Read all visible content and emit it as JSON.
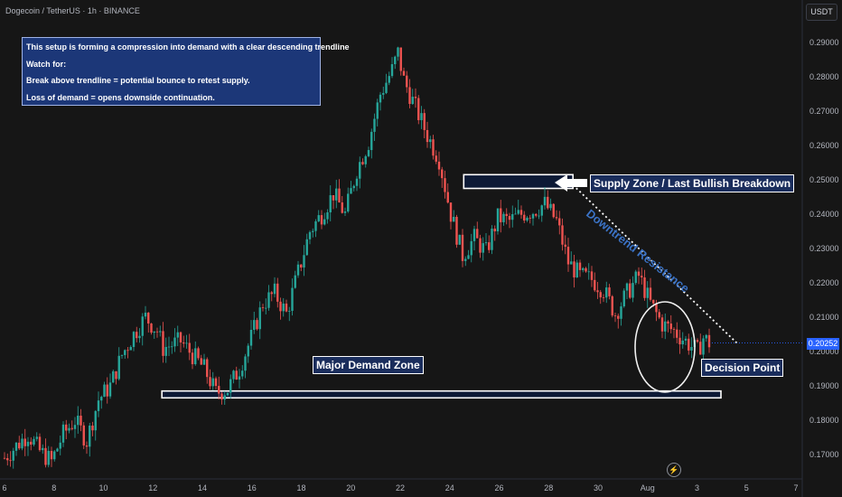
{
  "header": {
    "symbol_title": "Dogecoin / TetherUS · 1h · BINANCE",
    "currency_button": "USDT"
  },
  "note": {
    "lines": [
      "This setup is forming a compression into demand with a clear descending trendline",
      "Watch for:",
      "Break above trendline = potential bounce to retest supply.",
      "Loss of demand = opens downside continuation."
    ]
  },
  "annotations": {
    "supply": "Supply Zone / Last Bullish Breakdown",
    "demand": "Major Demand Zone",
    "trend": "Downtrend Resistance",
    "decision": "Decision Point"
  },
  "last_price": "0.20252",
  "colors": {
    "up": "#26a69a",
    "down": "#ef5350",
    "background": "#161616",
    "zone_fill": "#0d1a36",
    "accent": "#2962ff",
    "trend_text": "#3b73c6"
  },
  "icons": {
    "flash": "lightning-bolt-icon",
    "arrow": "left-arrow-icon"
  },
  "chart_data": {
    "type": "candlestick",
    "title": "",
    "xlabel": "",
    "ylabel": "",
    "ylim": [
      0.165,
      0.295
    ],
    "y_ticks": [
      "0.29000",
      "0.28000",
      "0.27000",
      "0.26000",
      "0.25000",
      "0.24000",
      "0.23000",
      "0.22000",
      "0.21000",
      "0.20000",
      "0.19000",
      "0.18000",
      "0.17000"
    ],
    "x_ticks": [
      "6",
      "8",
      "10",
      "12",
      "14",
      "16",
      "18",
      "20",
      "22",
      "24",
      "26",
      "28",
      "30",
      "Aug",
      "3",
      "5",
      "7"
    ],
    "grid": false,
    "price_path": [
      [
        0,
        0.169
      ],
      [
        4,
        0.176
      ],
      [
        6,
        0.171
      ],
      [
        8,
        0.168
      ],
      [
        10,
        0.176
      ],
      [
        12,
        0.18
      ],
      [
        14,
        0.174
      ],
      [
        16,
        0.186
      ],
      [
        18,
        0.19
      ],
      [
        20,
        0.199
      ],
      [
        22,
        0.205
      ],
      [
        24,
        0.21
      ],
      [
        26,
        0.206
      ],
      [
        27,
        0.201
      ],
      [
        30,
        0.203
      ],
      [
        34,
        0.195
      ],
      [
        36,
        0.188
      ],
      [
        38,
        0.189
      ],
      [
        40,
        0.195
      ],
      [
        42,
        0.204
      ],
      [
        44,
        0.214
      ],
      [
        46,
        0.217
      ],
      [
        48,
        0.211
      ],
      [
        50,
        0.223
      ],
      [
        52,
        0.235
      ],
      [
        54,
        0.24
      ],
      [
        56,
        0.246
      ],
      [
        58,
        0.24
      ],
      [
        60,
        0.253
      ],
      [
        62,
        0.261
      ],
      [
        64,
        0.275
      ],
      [
        66,
        0.282
      ],
      [
        67,
        0.287
      ],
      [
        68,
        0.279
      ],
      [
        70,
        0.271
      ],
      [
        72,
        0.263
      ],
      [
        74,
        0.256
      ],
      [
        76,
        0.24
      ],
      [
        78,
        0.228
      ],
      [
        80,
        0.233
      ],
      [
        82,
        0.229
      ],
      [
        84,
        0.239
      ],
      [
        86,
        0.238
      ],
      [
        88,
        0.24
      ],
      [
        90,
        0.241
      ],
      [
        92,
        0.243
      ],
      [
        94,
        0.238
      ],
      [
        96,
        0.226
      ],
      [
        98,
        0.222
      ],
      [
        100,
        0.221
      ],
      [
        102,
        0.218
      ],
      [
        104,
        0.211
      ],
      [
        106,
        0.217
      ],
      [
        108,
        0.222
      ],
      [
        110,
        0.214
      ],
      [
        112,
        0.208
      ],
      [
        114,
        0.206
      ],
      [
        116,
        0.203
      ],
      [
        118,
        0.2
      ],
      [
        119,
        0.204
      ],
      [
        120,
        0.2025
      ]
    ],
    "zones": [
      {
        "name": "Supply Zone / Last Bullish Breakdown",
        "y_range": [
          0.2475,
          0.2515
        ],
        "x_range": [
          78.2,
          96.8
        ]
      },
      {
        "name": "Major Demand Zone",
        "y_range": [
          0.1865,
          0.1885
        ],
        "x_range": [
          26.8,
          122.0
        ]
      }
    ],
    "trendline": {
      "label": "Downtrend Resistance",
      "from": [
        96.8,
        0.2485
      ],
      "to": [
        125,
        0.202
      ]
    },
    "last_price": 0.20252
  }
}
